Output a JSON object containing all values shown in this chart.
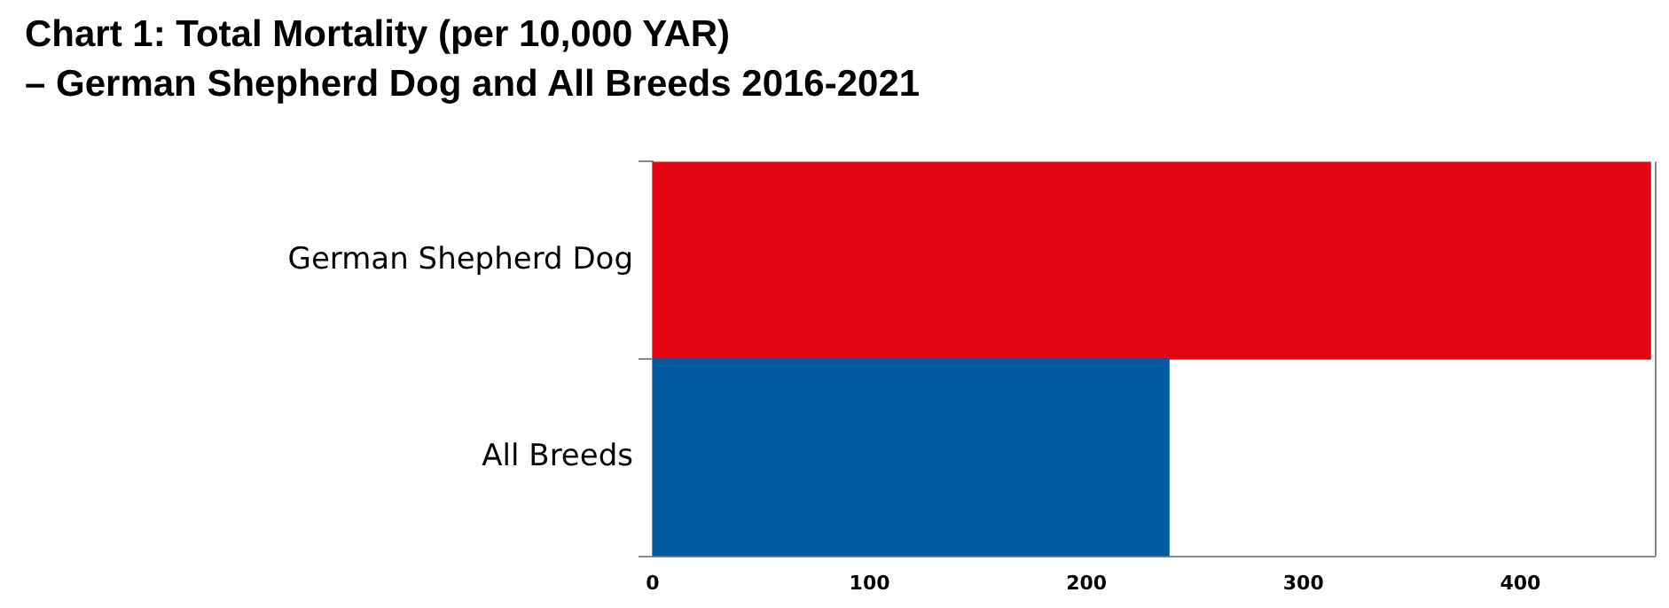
{
  "chart_data": {
    "type": "bar",
    "orientation": "horizontal",
    "title": "Chart 1: Total Mortality (per 10,000 YAR)",
    "subtitle": "–  German Shepherd Dog and All Breeds 2016-2021",
    "categories": [
      "German Shepherd Dog",
      "All Breeds"
    ],
    "values": [
      460,
      238
    ],
    "colors": [
      "#e30613",
      "#005a9f"
    ],
    "xlim": [
      0,
      462
    ],
    "xticks": [
      0,
      100,
      200,
      300,
      400
    ],
    "grid": false,
    "legend": false
  }
}
